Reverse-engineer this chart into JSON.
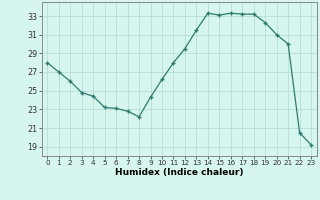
{
  "x": [
    0,
    1,
    2,
    3,
    4,
    5,
    6,
    7,
    8,
    9,
    10,
    11,
    12,
    13,
    14,
    15,
    16,
    17,
    18,
    19,
    20,
    21,
    22,
    23
  ],
  "y": [
    28.0,
    27.0,
    26.0,
    24.8,
    24.4,
    23.2,
    23.1,
    22.8,
    22.2,
    24.3,
    26.2,
    28.0,
    29.5,
    31.5,
    33.3,
    33.1,
    33.3,
    33.2,
    33.2,
    32.3,
    31.0,
    30.0,
    20.5,
    19.2
  ],
  "line_color": "#2e7b6e",
  "marker_color": "#2e7b6e",
  "bg_color": "#d6f5ef",
  "grid_color": "#b8ddd7",
  "xlabel": "Humidex (Indice chaleur)",
  "yticks": [
    19,
    21,
    23,
    25,
    27,
    29,
    31,
    33
  ],
  "xticks": [
    0,
    1,
    2,
    3,
    4,
    5,
    6,
    7,
    8,
    9,
    10,
    11,
    12,
    13,
    14,
    15,
    16,
    17,
    18,
    19,
    20,
    21,
    22,
    23
  ],
  "ylim": [
    18.0,
    34.5
  ],
  "xlim": [
    -0.5,
    23.5
  ]
}
